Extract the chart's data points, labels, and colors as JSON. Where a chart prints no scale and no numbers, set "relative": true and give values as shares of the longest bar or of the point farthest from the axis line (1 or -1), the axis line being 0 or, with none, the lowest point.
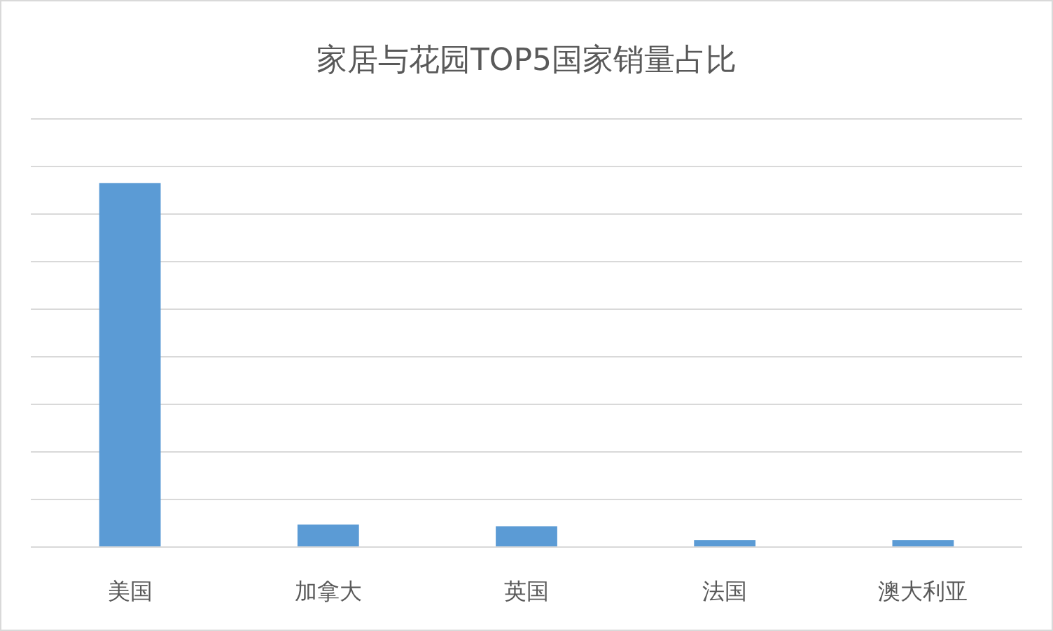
{
  "chart_data": {
    "type": "bar",
    "title": "家居与花园TOP5国家销量占比",
    "categories": [
      "美国",
      "加拿大",
      "英国",
      "法国",
      "澳大利亚"
    ],
    "values": [
      1,
      0.062,
      0.057,
      0.019,
      0.019
    ],
    "color": "#5b9bd5",
    "relative": true,
    "grid": "y"
  }
}
